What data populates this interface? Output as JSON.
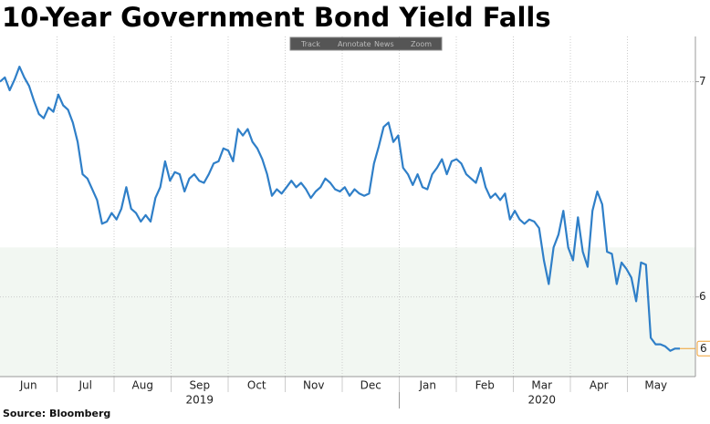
{
  "chart_data": {
    "type": "line",
    "title": "10-Year Government Bond Yield Falls",
    "source": "Source: Bloomberg",
    "toolbar": [
      "Track",
      "Annotate",
      "News",
      "Zoom"
    ],
    "years": [
      {
        "label": "2019",
        "months": [
          "Jun",
          "Jul",
          "Aug",
          "Sep",
          "Oct",
          "Nov",
          "Dec"
        ]
      },
      {
        "label": "2020",
        "months": [
          "Jan",
          "Feb",
          "Mar",
          "Apr",
          "May"
        ]
      }
    ],
    "series": [
      {
        "color": "#2f7fc8",
        "values": [
          7.0,
          7.02,
          6.96,
          7.01,
          7.07,
          7.02,
          6.98,
          6.91,
          6.85,
          6.83,
          6.88,
          6.86,
          6.94,
          6.89,
          6.87,
          6.81,
          6.72,
          6.57,
          6.55,
          6.5,
          6.45,
          6.34,
          6.35,
          6.39,
          6.36,
          6.41,
          6.51,
          6.41,
          6.39,
          6.35,
          6.38,
          6.35,
          6.46,
          6.51,
          6.63,
          6.54,
          6.58,
          6.57,
          6.49,
          6.55,
          6.57,
          6.54,
          6.53,
          6.57,
          6.62,
          6.63,
          6.69,
          6.68,
          6.63,
          6.78,
          6.75,
          6.78,
          6.72,
          6.69,
          6.64,
          6.57,
          6.47,
          6.5,
          6.48,
          6.51,
          6.54,
          6.51,
          6.53,
          6.5,
          6.46,
          6.49,
          6.51,
          6.55,
          6.53,
          6.5,
          6.49,
          6.51,
          6.47,
          6.5,
          6.48,
          6.47,
          6.48,
          6.62,
          6.7,
          6.79,
          6.81,
          6.72,
          6.75,
          6.6,
          6.57,
          6.52,
          6.57,
          6.51,
          6.5,
          6.57,
          6.6,
          6.64,
          6.57,
          6.63,
          6.64,
          6.62,
          6.57,
          6.55,
          6.53,
          6.6,
          6.51,
          6.46,
          6.48,
          6.45,
          6.48,
          6.36,
          6.4,
          6.36,
          6.34,
          6.36,
          6.35,
          6.32,
          6.17,
          6.06,
          6.23,
          6.29,
          6.4,
          6.23,
          6.17,
          6.37,
          6.21,
          6.14,
          6.4,
          6.49,
          6.43,
          6.21,
          6.2,
          6.06,
          6.16,
          6.13,
          6.09,
          5.98,
          6.16,
          6.15,
          5.81,
          5.78,
          5.78,
          5.77,
          5.75,
          5.76,
          5.76
        ]
      }
    ],
    "last_value_label": "6",
    "last_label_color": "#f0a030",
    "ylim": [
      5.63,
      7.21
    ],
    "yticks": [
      7,
      6
    ],
    "grid": true,
    "highlight_below": 6.23,
    "highlight_color": "#f2f7f2"
  }
}
